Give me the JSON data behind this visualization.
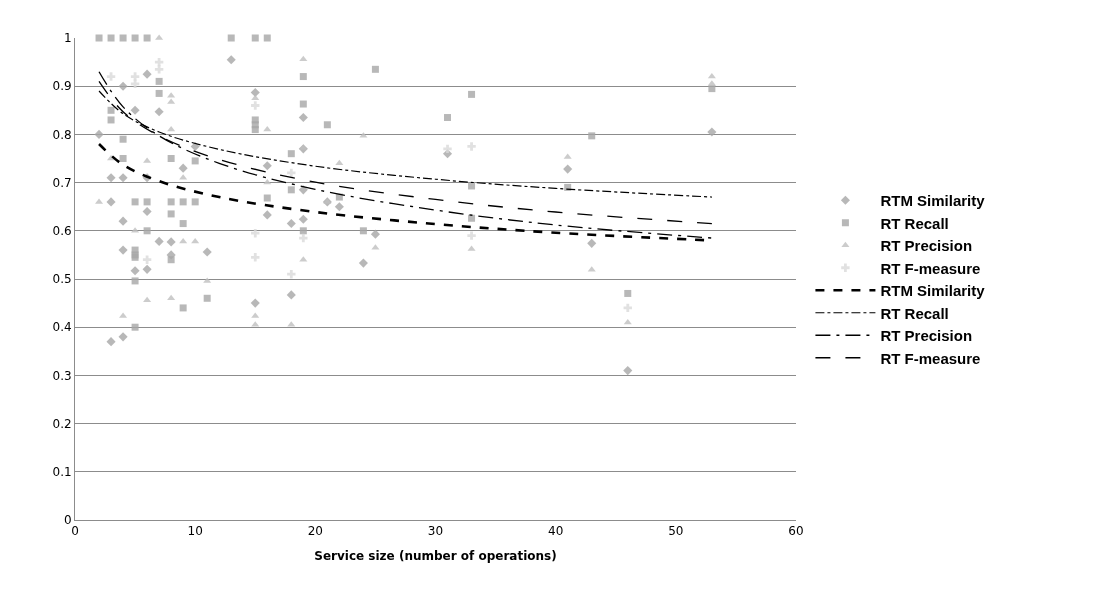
{
  "chart_data": {
    "type": "scatter",
    "xlabel": "Service size (number of operations)",
    "xlim": [
      0,
      60
    ],
    "xticks": [
      0,
      10,
      20,
      30,
      40,
      50,
      60
    ],
    "ylim": [
      0,
      1
    ],
    "yticks": [
      0,
      0.1,
      0.2,
      0.3,
      0.4,
      0.5,
      0.6,
      0.7,
      0.8,
      0.9,
      1
    ],
    "grid": "y",
    "legend": "right",
    "series": [
      {
        "name": "RTM Similarity",
        "type": "scatter",
        "marker": "diamond",
        "color": "#a6a6a6",
        "x": [
          13,
          7,
          6,
          4,
          5,
          2,
          10,
          9,
          3,
          4,
          6,
          3,
          6,
          4,
          7,
          8,
          11,
          4,
          8,
          5,
          6,
          3,
          4,
          15,
          15,
          16,
          16,
          18,
          18,
          19,
          19,
          19,
          19,
          21,
          22,
          24,
          25,
          31,
          41,
          43,
          46,
          53
        ],
        "values": [
          0.955,
          0.847,
          0.925,
          0.9,
          0.85,
          0.8,
          0.775,
          0.73,
          0.71,
          0.71,
          0.71,
          0.66,
          0.64,
          0.62,
          0.578,
          0.577,
          0.556,
          0.56,
          0.55,
          0.517,
          0.52,
          0.37,
          0.38,
          0.887,
          0.45,
          0.735,
          0.633,
          0.615,
          0.467,
          0.835,
          0.77,
          0.624,
          0.685,
          0.66,
          0.65,
          0.533,
          0.593,
          0.76,
          0.728,
          0.574,
          0.31,
          0.805
        ]
      },
      {
        "name": "RT Recall",
        "type": "scatter",
        "marker": "square",
        "color": "#a6a6a6",
        "x": [
          2,
          3,
          4,
          5,
          6,
          13,
          15,
          16,
          7,
          7,
          3,
          3,
          8,
          4,
          10,
          4,
          5,
          6,
          8,
          9,
          10,
          8,
          9,
          6,
          5,
          5,
          5,
          8,
          11,
          9,
          5,
          5,
          15,
          15,
          15,
          16,
          18,
          18,
          19,
          19,
          19,
          21,
          22,
          24,
          25,
          31,
          33,
          33,
          33,
          41,
          43,
          46,
          53
        ],
        "values": [
          1,
          1,
          1,
          1,
          1,
          1,
          1,
          1,
          0.91,
          0.885,
          0.85,
          0.83,
          0.75,
          0.79,
          0.745,
          0.75,
          0.66,
          0.66,
          0.66,
          0.66,
          0.66,
          0.635,
          0.615,
          0.6,
          0.56,
          0.55,
          0.545,
          0.54,
          0.46,
          0.44,
          0.496,
          0.4,
          0.83,
          0.82,
          0.81,
          0.668,
          0.76,
          0.685,
          0.92,
          0.863,
          0.6,
          0.82,
          0.67,
          0.6,
          0.935,
          0.835,
          0.883,
          0.693,
          0.626,
          0.69,
          0.797,
          0.47,
          0.895
        ]
      },
      {
        "name": "RT Precision",
        "type": "scatter",
        "marker": "triangle",
        "color": "#bfbfbf",
        "x": [
          7,
          8,
          8,
          8,
          3,
          6,
          9,
          2,
          5,
          9,
          10,
          11,
          6,
          8,
          4,
          15,
          15,
          15,
          16,
          16,
          18,
          19,
          19,
          19,
          21,
          22,
          24,
          25,
          33,
          41,
          43,
          46,
          53,
          53
        ],
        "values": [
          1,
          0.88,
          0.867,
          0.81,
          0.75,
          0.745,
          0.71,
          0.66,
          0.6,
          0.578,
          0.578,
          0.496,
          0.456,
          0.46,
          0.423,
          0.875,
          0.423,
          0.405,
          0.81,
          0.7,
          0.405,
          0.956,
          0.772,
          0.54,
          0.66,
          0.74,
          0.797,
          0.565,
          0.562,
          0.753,
          0.519,
          0.41,
          0.92,
          0.905
        ]
      },
      {
        "name": "RT F-measure",
        "type": "scatter",
        "marker": "cross",
        "color": "#d9d9d9",
        "x": [
          3,
          5,
          5,
          7,
          7,
          6,
          15,
          15,
          15,
          18,
          18,
          19,
          31,
          33,
          33,
          46
        ],
        "values": [
          0.92,
          0.92,
          0.905,
          0.95,
          0.935,
          0.54,
          0.86,
          0.595,
          0.545,
          0.72,
          0.51,
          0.585,
          0.77,
          0.775,
          0.59,
          0.44
        ]
      },
      {
        "name": "RTM Similarity",
        "type": "line",
        "marker": "none",
        "line_style": "dashed",
        "color": "#000000",
        "x": [
          2,
          4,
          7,
          12,
          20,
          30,
          40,
          53
        ],
        "values": [
          0.78,
          0.737,
          0.703,
          0.67,
          0.639,
          0.614,
          0.596,
          0.58
        ]
      },
      {
        "name": "RT Recall",
        "type": "line",
        "marker": "none",
        "line_style": "dashdot",
        "color": "#000000",
        "x": [
          2,
          4,
          7,
          12,
          20,
          30,
          40,
          53
        ],
        "values": [
          0.89,
          0.843,
          0.805,
          0.769,
          0.734,
          0.707,
          0.688,
          0.67
        ]
      },
      {
        "name": "RT Precision",
        "type": "line",
        "marker": "none",
        "line_style": "longdashdot",
        "color": "#000000",
        "x": [
          2,
          4,
          7,
          12,
          20,
          30,
          40,
          53
        ],
        "values": [
          0.93,
          0.857,
          0.797,
          0.74,
          0.686,
          0.643,
          0.612,
          0.585
        ]
      },
      {
        "name": "RT F-measure",
        "type": "line",
        "marker": "none",
        "line_style": "longdash",
        "color": "#000000",
        "x": [
          2,
          4,
          7,
          12,
          20,
          30,
          40,
          53
        ],
        "values": [
          0.91,
          0.847,
          0.797,
          0.748,
          0.701,
          0.665,
          0.639,
          0.615
        ]
      }
    ]
  }
}
